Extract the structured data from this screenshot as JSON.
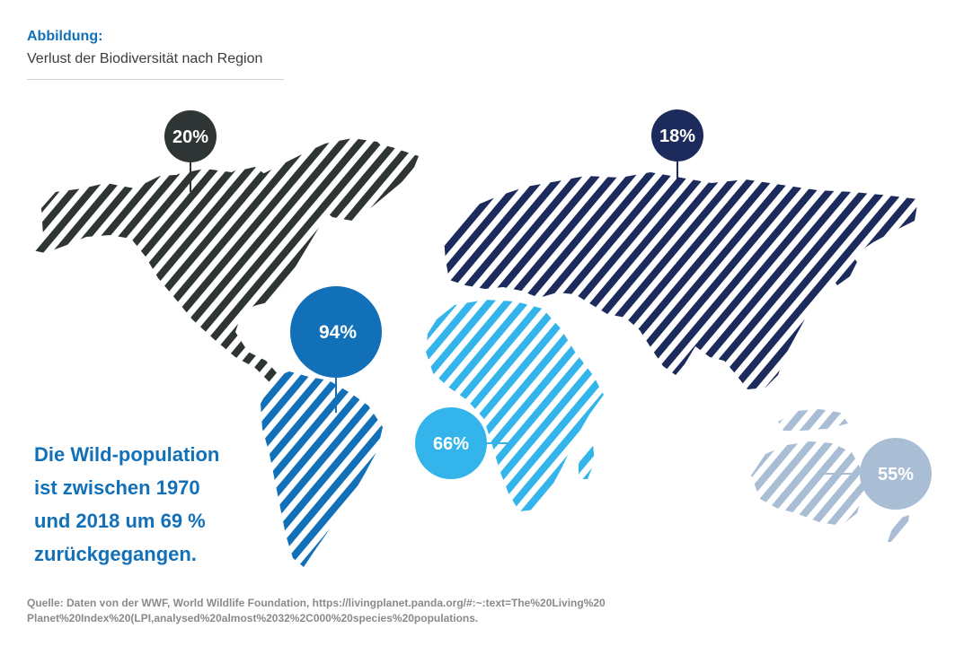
{
  "figure": {
    "label": "Abbildung:",
    "title": "Verlust der Biodiversität nach Region"
  },
  "regions": [
    {
      "id": "north-america",
      "value": "20%",
      "color": "#2f3535"
    },
    {
      "id": "latin-america",
      "value": "94%",
      "color": "#1270b8"
    },
    {
      "id": "africa",
      "value": "66%",
      "color": "#33b4ea"
    },
    {
      "id": "europe-central-asia",
      "value": "18%",
      "color": "#1c2a5c"
    },
    {
      "id": "asia-pacific",
      "value": "55%",
      "color": "#a9bdd4"
    }
  ],
  "headline": {
    "line1": "Die Wild-population",
    "line2": "ist zwischen 1970",
    "line3": "und 2018 um 69 %",
    "line4": "zurückgegangen."
  },
  "source": {
    "line1": "Quelle: Daten von der WWF, World Wildlife Foundation, https://livingplanet.panda.org/#:~:text=The%20Living%20",
    "line2": "Planet%20Index%20(LPI,analysed%20almost%2032%2C000%20species%20populations."
  }
}
